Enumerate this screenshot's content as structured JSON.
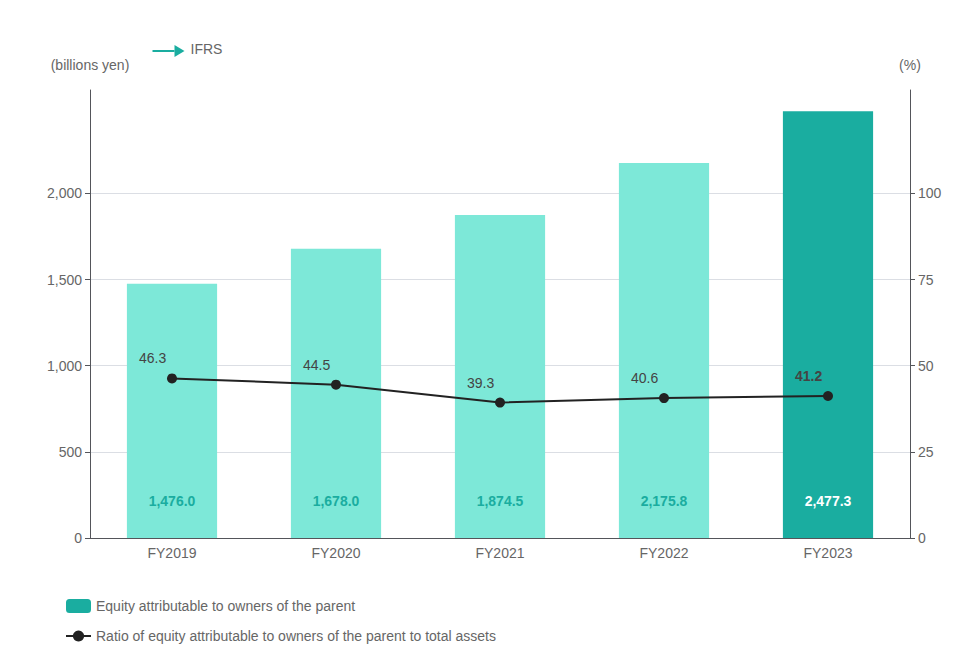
{
  "chart_data": {
    "type": "bar",
    "categories": [
      "FY2019",
      "FY2020",
      "FY2021",
      "FY2022",
      "FY2023"
    ],
    "ylabel": "(billions yen)",
    "y2label": "(%)",
    "annotation": "IFRS",
    "ylim": [
      0,
      2600
    ],
    "yticks": [
      0,
      500,
      {
        "value": 1000,
        "label": "1,000"
      },
      {
        "value": 1500,
        "label": "1,500"
      },
      {
        "value": 2000,
        "label": "2,000"
      }
    ],
    "y2lim": [
      0,
      130
    ],
    "y2ticks": [
      0,
      25,
      50,
      75,
      100
    ],
    "grid": true,
    "legend": "bottom",
    "series": [
      {
        "name": "Equity attributable to owners of the parent",
        "type": "bar",
        "colors": [
          "#7de8d8",
          "#7de8d8",
          "#7de8d8",
          "#7de8d8",
          "#1aada0"
        ],
        "values": [
          1476.0,
          1678.0,
          1874.5,
          2175.8,
          2477.3
        ],
        "value_labels": [
          "1,476.0",
          "1,678.0",
          "1,874.5",
          "2,175.8",
          "2,477.3"
        ],
        "data_labels": true
      },
      {
        "name": "Ratio of equity attributable to owners of the parent to total assets",
        "type": "line",
        "axis": "y2",
        "color": "#222222",
        "marker": "circle",
        "values": [
          46.3,
          44.5,
          39.3,
          40.6,
          41.2
        ],
        "data_labels": true
      }
    ]
  }
}
